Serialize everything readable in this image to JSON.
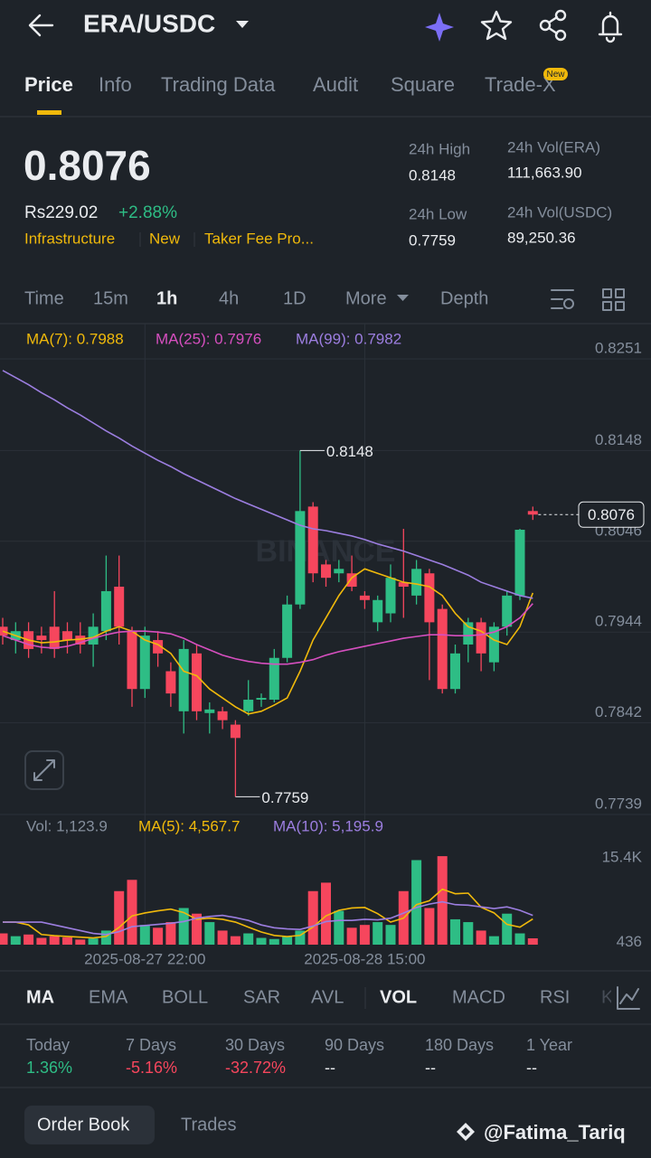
{
  "header": {
    "title": "ERA/USDC"
  },
  "tabs": [
    "Price",
    "Info",
    "Trading Data",
    "Audit",
    "Square",
    "Trade-X"
  ],
  "tab_badge": "New",
  "ticker": {
    "price": "0.8076",
    "fiat": "Rs229.02",
    "change": "+2.88%",
    "tags": [
      "Infrastructure",
      "New",
      "Taker Fee Pro..."
    ]
  },
  "stats": [
    {
      "label": "24h High",
      "value": "0.8148"
    },
    {
      "label": "24h Low",
      "value": "0.7759"
    },
    {
      "label": "24h Vol(ERA)",
      "value": "111,663.90"
    },
    {
      "label": "24h Vol(USDC)",
      "value": "89,250.36"
    }
  ],
  "timeframes": [
    "Time",
    "15m",
    "1h",
    "4h",
    "1D",
    "More",
    "Depth"
  ],
  "chart_data": {
    "type": "candlestick",
    "watermark": "BINANCE",
    "up_color": "#2ebd85",
    "down_color": "#f6465d",
    "grid": true,
    "ylim": [
      0.7739,
      0.8251
    ],
    "yticks": [
      0.8251,
      0.8148,
      0.8046,
      0.7944,
      0.7842,
      0.7739
    ],
    "categories": [
      null,
      null,
      null,
      null,
      null,
      null,
      null,
      null,
      null,
      null,
      null,
      "2025-08-27 22:00",
      null,
      null,
      null,
      null,
      null,
      null,
      null,
      null,
      null,
      null,
      null,
      null,
      null,
      null,
      null,
      null,
      "2025-08-28 15:00",
      null,
      null,
      null,
      null,
      null,
      null,
      null,
      null,
      null,
      null,
      null,
      null,
      null
    ],
    "open": [
      0.795,
      0.7935,
      0.7945,
      0.794,
      0.795,
      0.7945,
      0.794,
      0.793,
      0.7945,
      0.7995,
      0.7945,
      0.788,
      0.7935,
      0.79,
      0.7855,
      0.792,
      0.7853,
      0.7855,
      0.784,
      0.7855,
      0.7868,
      0.7868,
      0.7915,
      0.7975,
      0.8085,
      0.802,
      0.801,
      0.801,
      0.7985,
      0.7955,
      0.7965,
      0.8,
      0.7985,
      0.801,
      0.797,
      0.788,
      0.793,
      0.7955,
      0.791,
      0.795,
      0.7985,
      0.808
    ],
    "high": [
      0.796,
      0.7955,
      0.7955,
      0.795,
      0.799,
      0.7955,
      0.7955,
      0.7965,
      0.803,
      0.803,
      0.795,
      0.795,
      0.7945,
      0.791,
      0.7935,
      0.793,
      0.7865,
      0.786,
      0.7845,
      0.789,
      0.7875,
      0.7925,
      0.7985,
      0.8148,
      0.809,
      0.8025,
      0.8025,
      0.803,
      0.799,
      0.7985,
      0.802,
      0.806,
      0.8025,
      0.8015,
      0.7975,
      0.793,
      0.796,
      0.796,
      0.7955,
      0.799,
      0.806,
      0.8085
    ],
    "low": [
      0.793,
      0.792,
      0.7915,
      0.792,
      0.7915,
      0.792,
      0.792,
      0.7905,
      0.7935,
      0.793,
      0.786,
      0.787,
      0.7905,
      0.786,
      0.783,
      0.7845,
      0.783,
      0.7835,
      0.7759,
      0.785,
      0.786,
      0.7865,
      0.791,
      0.797,
      0.8,
      0.7995,
      0.8,
      0.799,
      0.797,
      0.7945,
      0.7955,
      0.796,
      0.7975,
      0.789,
      0.7875,
      0.7875,
      0.791,
      0.79,
      0.79,
      0.794,
      0.798,
      0.807
    ],
    "close": [
      0.794,
      0.7945,
      0.7925,
      0.7935,
      0.7925,
      0.7935,
      0.793,
      0.795,
      0.799,
      0.795,
      0.788,
      0.794,
      0.792,
      0.7875,
      0.7925,
      0.7855,
      0.7857,
      0.7845,
      0.7825,
      0.7868,
      0.787,
      0.7915,
      0.7975,
      0.808,
      0.801,
      0.8005,
      0.8015,
      0.7995,
      0.798,
      0.798,
      0.8005,
      0.7995,
      0.8015,
      0.7955,
      0.788,
      0.792,
      0.7955,
      0.792,
      0.795,
      0.7985,
      0.8059,
      0.8076
    ],
    "series": [
      {
        "name": "MA(7): 0.7988",
        "color": "#f0b90b",
        "values": [
          0.7945,
          0.794,
          0.7935,
          0.7932,
          0.7933,
          0.7935,
          0.7936,
          0.7938,
          0.7945,
          0.795,
          0.7945,
          0.7935,
          0.793,
          0.792,
          0.79,
          0.7895,
          0.788,
          0.787,
          0.786,
          0.7852,
          0.7855,
          0.7862,
          0.787,
          0.79,
          0.7935,
          0.796,
          0.7985,
          0.8005,
          0.8015,
          0.801,
          0.8005,
          0.8,
          0.7998,
          0.7995,
          0.7985,
          0.7965,
          0.795,
          0.7945,
          0.7935,
          0.793,
          0.795,
          0.7988
        ]
      },
      {
        "name": "MA(25): 0.7976",
        "color": "#d64fbf",
        "values": [
          0.794,
          0.7935,
          0.793,
          0.7927,
          0.7926,
          0.7928,
          0.7932,
          0.7937,
          0.7941,
          0.7944,
          0.7945,
          0.7945,
          0.7944,
          0.7942,
          0.7937,
          0.793,
          0.7924,
          0.7918,
          0.7914,
          0.7911,
          0.7909,
          0.7908,
          0.7908,
          0.791,
          0.7913,
          0.7918,
          0.7922,
          0.7925,
          0.7928,
          0.7931,
          0.7934,
          0.7937,
          0.7939,
          0.7941,
          0.7941,
          0.794,
          0.794,
          0.7941,
          0.7944,
          0.795,
          0.796,
          0.7976
        ]
      },
      {
        "name": "MA(99): 0.7982",
        "color": "#9c7ee0",
        "values": [
          0.8238,
          0.823,
          0.8222,
          0.8213,
          0.8205,
          0.8196,
          0.8188,
          0.8179,
          0.817,
          0.8162,
          0.8153,
          0.8145,
          0.8137,
          0.813,
          0.8122,
          0.8115,
          0.8108,
          0.8101,
          0.8094,
          0.8088,
          0.8082,
          0.8076,
          0.807,
          0.8064,
          0.806,
          0.8058,
          0.8055,
          0.8052,
          0.8048,
          0.8043,
          0.8039,
          0.8035,
          0.803,
          0.8025,
          0.802,
          0.8014,
          0.8008,
          0.8,
          0.7995,
          0.799,
          0.7985,
          0.7982
        ]
      }
    ],
    "high_label": 0.8148,
    "low_label": 0.7759,
    "last_price": 0.8076,
    "vol_label": "Vol: 1,123.9",
    "vol_ylim": [
      0,
      17000
    ],
    "vol_yticks": [
      {
        "value": 15400,
        "label": "15.4K"
      },
      436
    ],
    "volume": [
      2000,
      1500,
      1800,
      1200,
      1500,
      1300,
      900,
      1100,
      2500,
      9500,
      11500,
      3500,
      3000,
      4000,
      6500,
      5500,
      4000,
      2500,
      1500,
      2000,
      1200,
      1000,
      1500,
      2500,
      9500,
      11000,
      6000,
      3000,
      3500,
      4000,
      3500,
      9500,
      15000,
      6500,
      15700,
      4500,
      4000,
      2500,
      1500,
      5500,
      2000,
      1124
    ],
    "vol_series": [
      {
        "name": "MA(5): 4,567.7",
        "color": "#f0b90b",
        "values": [
          4000,
          4000,
          3500,
          1800,
          1600,
          1460,
          1340,
          1200,
          1460,
          3060,
          5100,
          5620,
          6000,
          6300,
          5700,
          4500,
          4700,
          4500,
          4000,
          3100,
          2240,
          1640,
          1440,
          1640,
          3140,
          5100,
          6100,
          6500,
          6600,
          5500,
          4000,
          4700,
          7100,
          7800,
          9840,
          9040,
          9140,
          6640,
          5640,
          3600,
          3100,
          4568
        ]
      },
      {
        "name": "MA(10): 5,195.9",
        "color": "#9c7ee0",
        "values": [
          4000,
          4000,
          4000,
          4000,
          3500,
          3000,
          2500,
          2000,
          1800,
          2300,
          3200,
          3400,
          3600,
          3800,
          4100,
          4700,
          5000,
          5200,
          4800,
          4300,
          3500,
          3000,
          2800,
          2700,
          3300,
          4100,
          4300,
          4300,
          4500,
          4400,
          4700,
          5600,
          6600,
          7200,
          7600,
          7100,
          7000,
          6700,
          6400,
          6700,
          6100,
          5196
        ]
      }
    ]
  },
  "indicators": [
    "MA",
    "EMA",
    "BOLL",
    "SAR",
    "AVL",
    "VOL",
    "MACD",
    "RSI",
    "K"
  ],
  "performance": [
    {
      "label": "Today",
      "value": "1.36%"
    },
    {
      "label": "7 Days",
      "value": "-5.16%"
    },
    {
      "label": "30 Days",
      "value": "-32.72%"
    },
    {
      "label": "90 Days",
      "value": "--"
    },
    {
      "label": "180 Days",
      "value": "--"
    },
    {
      "label": "1 Year",
      "value": "--"
    }
  ],
  "bottom_tabs": [
    "Order Book",
    "Trades"
  ],
  "watermark": "@Fatima_Tariq"
}
